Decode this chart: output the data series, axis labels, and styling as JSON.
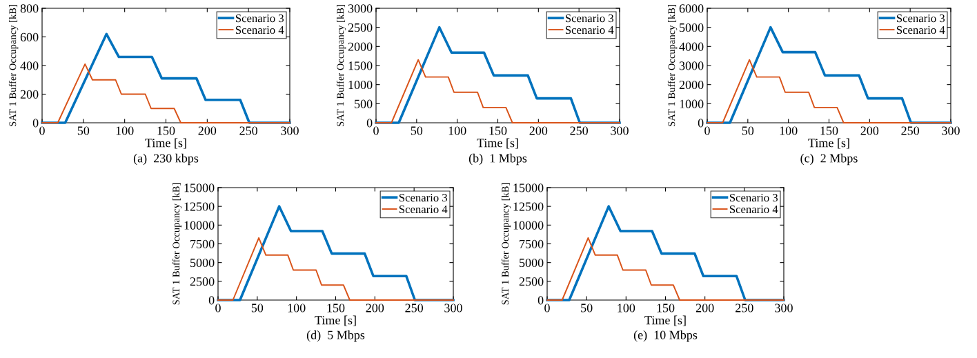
{
  "chart_data": [
    {
      "type": "line",
      "xlabel": "Time [s]",
      "ylabel": "SAT 1 Buffer Occupancy [kB]",
      "annotations": [
        "(a)  230 kbps"
      ],
      "xlim": [
        0,
        300
      ],
      "xticks": [
        0,
        50,
        100,
        150,
        200,
        250,
        300
      ],
      "ylim": [
        0,
        800
      ],
      "yticks": [
        0,
        200,
        400,
        600,
        800
      ],
      "legend": "top right",
      "grid": false,
      "series": [
        {
          "name": "Scenario 3",
          "color": "#0072bd",
          "x": [
            0,
            28,
            78,
            93,
            133,
            145,
            187,
            198,
            240,
            251,
            300
          ],
          "values": [
            0,
            0,
            620,
            460,
            460,
            310,
            310,
            160,
            160,
            0,
            0
          ]
        },
        {
          "name": "Scenario 4",
          "color": "#d95319",
          "x": [
            0,
            19,
            52,
            61,
            89,
            96,
            125,
            132,
            160,
            168,
            300
          ],
          "values": [
            0,
            0,
            410,
            300,
            300,
            200,
            200,
            100,
            100,
            0,
            0
          ]
        }
      ]
    },
    {
      "type": "line",
      "xlabel": "Time [s]",
      "ylabel": "SAT 1 Buffer Occupancy [kB]",
      "annotations": [
        "(b)  1 Mbps"
      ],
      "xlim": [
        0,
        300
      ],
      "xticks": [
        0,
        50,
        100,
        150,
        200,
        250,
        300
      ],
      "ylim": [
        0,
        3000
      ],
      "yticks": [
        0,
        500,
        1000,
        1500,
        2000,
        2500,
        3000
      ],
      "legend": "top right",
      "grid": false,
      "series": [
        {
          "name": "Scenario 3",
          "color": "#0072bd",
          "x": [
            0,
            28,
            78,
            93,
            133,
            145,
            187,
            198,
            240,
            251,
            300
          ],
          "values": [
            0,
            0,
            2500,
            1840,
            1840,
            1240,
            1240,
            640,
            640,
            0,
            0
          ]
        },
        {
          "name": "Scenario 4",
          "color": "#d95319",
          "x": [
            0,
            19,
            52,
            61,
            89,
            96,
            125,
            132,
            160,
            168,
            300
          ],
          "values": [
            0,
            0,
            1650,
            1200,
            1200,
            800,
            800,
            400,
            400,
            0,
            0
          ]
        }
      ]
    },
    {
      "type": "line",
      "xlabel": "Time [s]",
      "ylabel": "SAT 1 Buffer Occupancy [kB]",
      "annotations": [
        "(c)  2 Mbps"
      ],
      "xlim": [
        0,
        300
      ],
      "xticks": [
        0,
        50,
        100,
        150,
        200,
        250,
        300
      ],
      "ylim": [
        0,
        6000
      ],
      "yticks": [
        0,
        1000,
        2000,
        3000,
        4000,
        5000,
        6000
      ],
      "legend": "top right",
      "grid": false,
      "series": [
        {
          "name": "Scenario 3",
          "color": "#0072bd",
          "x": [
            0,
            28,
            78,
            93,
            133,
            145,
            187,
            198,
            240,
            251,
            300
          ],
          "values": [
            0,
            0,
            5000,
            3700,
            3700,
            2480,
            2480,
            1280,
            1280,
            0,
            0
          ]
        },
        {
          "name": "Scenario 4",
          "color": "#d95319",
          "x": [
            0,
            19,
            52,
            61,
            89,
            96,
            125,
            132,
            160,
            168,
            300
          ],
          "values": [
            0,
            0,
            3300,
            2400,
            2400,
            1600,
            1600,
            800,
            800,
            0,
            0
          ]
        }
      ]
    },
    {
      "type": "line",
      "xlabel": "Time [s]",
      "ylabel": "SAT 1 Buffer Occupancy [kB]",
      "annotations": [
        "(d)  5 Mbps"
      ],
      "xlim": [
        0,
        300
      ],
      "xticks": [
        0,
        50,
        100,
        150,
        200,
        250,
        300
      ],
      "ylim": [
        0,
        15000
      ],
      "yticks": [
        0,
        2500,
        5000,
        7500,
        10000,
        12500,
        15000
      ],
      "legend": "top right",
      "grid": false,
      "series": [
        {
          "name": "Scenario 3",
          "color": "#0072bd",
          "x": [
            0,
            28,
            78,
            93,
            133,
            145,
            187,
            198,
            240,
            251,
            300
          ],
          "values": [
            0,
            0,
            12500,
            9200,
            9200,
            6200,
            6200,
            3200,
            3200,
            0,
            0
          ]
        },
        {
          "name": "Scenario 4",
          "color": "#d95319",
          "x": [
            0,
            19,
            52,
            61,
            89,
            96,
            125,
            132,
            160,
            168,
            300
          ],
          "values": [
            0,
            0,
            8300,
            6000,
            6000,
            4000,
            4000,
            2000,
            2000,
            0,
            0
          ]
        }
      ]
    },
    {
      "type": "line",
      "xlabel": "Time [s]",
      "ylabel": "SAT 1 Buffer Occupancy [kB]",
      "annotations": [
        "(e)  10 Mbps"
      ],
      "xlim": [
        0,
        300
      ],
      "xticks": [
        0,
        50,
        100,
        150,
        200,
        250,
        300
      ],
      "ylim": [
        0,
        15000
      ],
      "yticks": [
        0,
        2500,
        5000,
        7500,
        10000,
        12500,
        15000
      ],
      "legend": "top right",
      "grid": false,
      "series": [
        {
          "name": "Scenario 3",
          "color": "#0072bd",
          "x": [
            0,
            28,
            78,
            93,
            133,
            145,
            187,
            198,
            240,
            251,
            300
          ],
          "values": [
            0,
            0,
            12500,
            9200,
            9200,
            6200,
            6200,
            3200,
            3200,
            0,
            0
          ]
        },
        {
          "name": "Scenario 4",
          "color": "#d95319",
          "x": [
            0,
            19,
            52,
            61,
            89,
            96,
            125,
            132,
            160,
            168,
            300
          ],
          "values": [
            0,
            0,
            8300,
            6000,
            6000,
            4000,
            4000,
            2000,
            2000,
            0,
            0
          ]
        }
      ]
    }
  ]
}
